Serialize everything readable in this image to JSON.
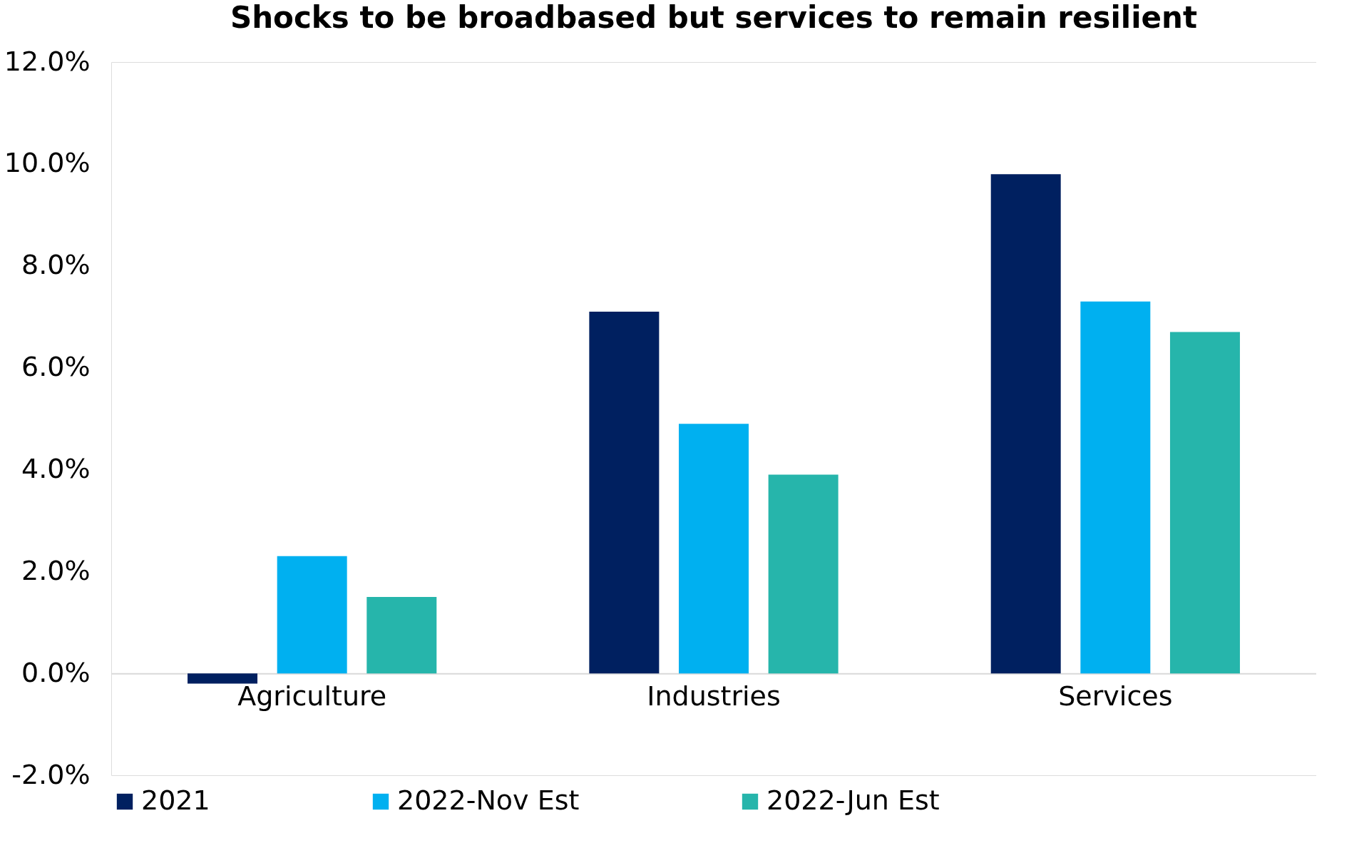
{
  "chart_data": {
    "type": "bar",
    "title": "Shocks to be broadbased but services to remain resilient",
    "categories": [
      "Agriculture",
      "Industries",
      "Services"
    ],
    "series": [
      {
        "name": "2021",
        "color": "#002060",
        "values": [
          -0.2,
          7.1,
          9.8
        ]
      },
      {
        "name": "2022-Nov Est",
        "color": "#00b0f0",
        "values": [
          2.3,
          4.9,
          7.3
        ]
      },
      {
        "name": "2022-Jun Est",
        "color": "#26b5ab",
        "values": [
          1.5,
          3.9,
          6.7
        ]
      }
    ],
    "ylim": [
      -2,
      12
    ],
    "yticks": [
      {
        "value": -2,
        "label": "-2.0%"
      },
      {
        "value": 0,
        "label": "0.0%"
      },
      {
        "value": 2,
        "label": "2.0%"
      },
      {
        "value": 4,
        "label": "4.0%"
      },
      {
        "value": 6,
        "label": "6.0%"
      },
      {
        "value": 8,
        "label": "8.0%"
      },
      {
        "value": 10,
        "label": "10.0%"
      },
      {
        "value": 12,
        "label": "12.0%"
      }
    ],
    "grid": false,
    "legend": "bottom"
  }
}
